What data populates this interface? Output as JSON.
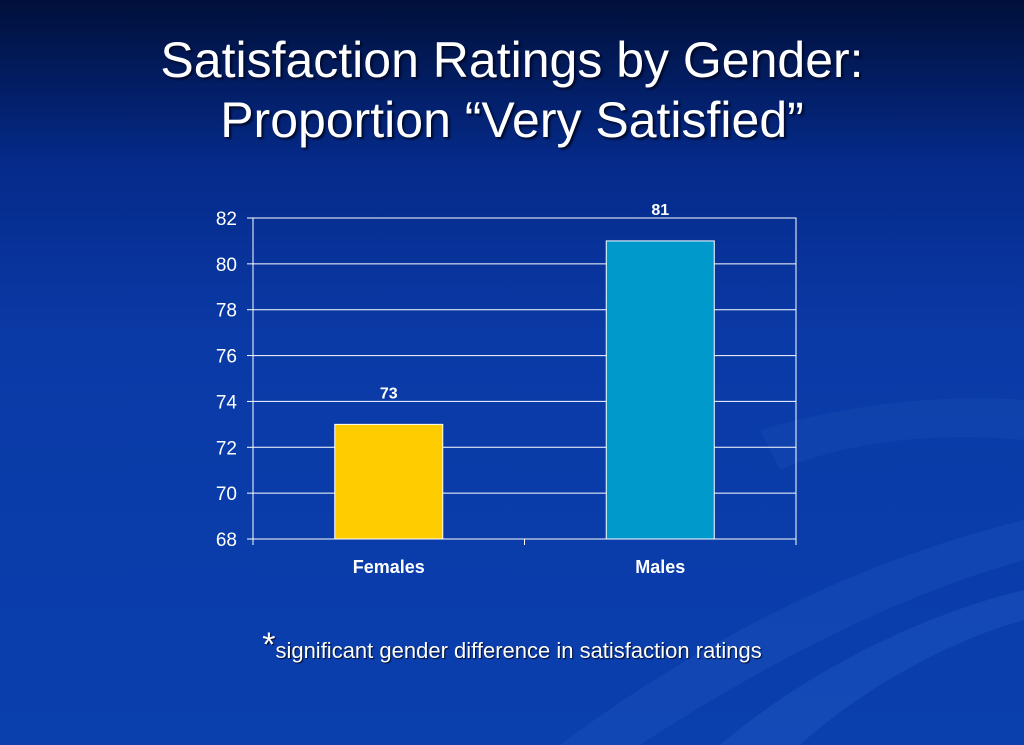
{
  "title": {
    "line1": "Satisfaction Ratings by Gender:",
    "line2": "Proportion “Very Satisfied”"
  },
  "footnote": {
    "marker": "*",
    "text": "significant gender difference in satisfaction ratings"
  },
  "colors": {
    "females_bar": "#ffcc00",
    "males_bar": "#0099cc",
    "gridline": "#ffffff",
    "text": "#ffffff"
  },
  "chart_data": {
    "type": "bar",
    "categories": [
      "Females",
      "Males"
    ],
    "values": [
      73,
      81
    ],
    "data_labels": [
      "73",
      "81"
    ],
    "ylim": [
      68,
      82
    ],
    "yticks": [
      68,
      70,
      72,
      74,
      76,
      78,
      80,
      82
    ],
    "grid": true,
    "title": "",
    "xlabel": "",
    "ylabel": ""
  }
}
